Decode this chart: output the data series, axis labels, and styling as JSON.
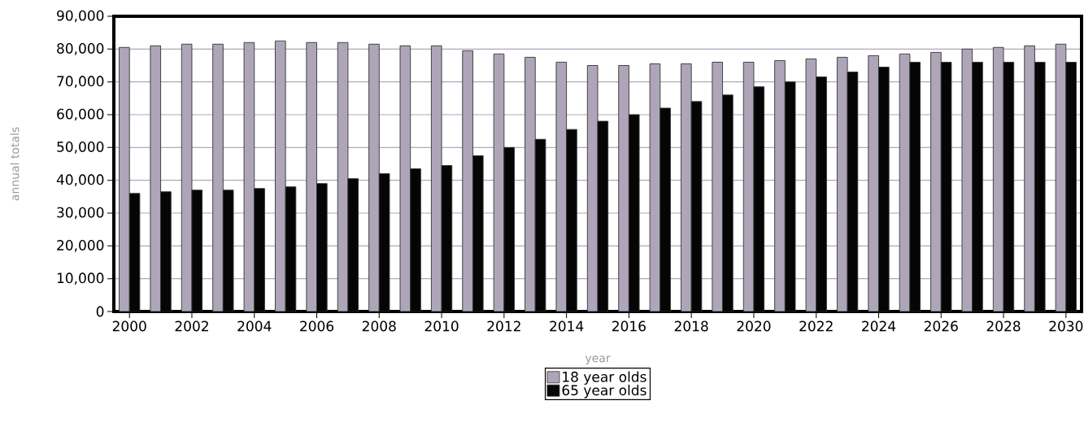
{
  "chart_data": {
    "type": "bar",
    "xlabel": "year",
    "ylabel": "annual totals",
    "x": [
      2000,
      2001,
      2002,
      2003,
      2004,
      2005,
      2006,
      2007,
      2008,
      2009,
      2010,
      2011,
      2012,
      2013,
      2014,
      2015,
      2016,
      2017,
      2018,
      2019,
      2020,
      2021,
      2022,
      2023,
      2024,
      2025,
      2026,
      2027,
      2028,
      2029,
      2030
    ],
    "series": [
      {
        "name": "18 year olds",
        "color": "#aea6b8",
        "values": [
          80500,
          81000,
          81500,
          81500,
          82000,
          82500,
          82000,
          82000,
          81500,
          81000,
          81000,
          79500,
          78500,
          77500,
          76000,
          75000,
          75000,
          75500,
          75500,
          76000,
          76000,
          76500,
          77000,
          77500,
          78000,
          78500,
          79000,
          80000,
          80500,
          81000,
          81500
        ]
      },
      {
        "name": "65 year olds",
        "color": "#050505",
        "values": [
          36000,
          36500,
          37000,
          37000,
          37500,
          38000,
          39000,
          40500,
          42000,
          43500,
          44500,
          47500,
          50000,
          52500,
          55500,
          58000,
          60000,
          62000,
          64000,
          66000,
          68500,
          70000,
          71500,
          73000,
          74500,
          76000,
          76000,
          76000,
          76000,
          76000,
          76000
        ]
      }
    ],
    "xlim": [
      1999.5,
      2030.5
    ],
    "xticks": [
      2000,
      2002,
      2004,
      2006,
      2008,
      2010,
      2012,
      2014,
      2016,
      2018,
      2020,
      2022,
      2024,
      2026,
      2028,
      2030
    ],
    "ylim": [
      0,
      90000
    ],
    "yticks": [
      {
        "value": 0,
        "label": "0"
      },
      {
        "value": 10000,
        "label": "10,000"
      },
      {
        "value": 20000,
        "label": "20,000"
      },
      {
        "value": 30000,
        "label": "30,000"
      },
      {
        "value": 40000,
        "label": "40,000"
      },
      {
        "value": 50000,
        "label": "50,000"
      },
      {
        "value": 60000,
        "label": "60,000"
      },
      {
        "value": 70000,
        "label": "70,000"
      },
      {
        "value": 80000,
        "label": "80,000"
      },
      {
        "value": 90000,
        "label": "90,000"
      }
    ],
    "grid": "y",
    "legend": "bottom"
  }
}
